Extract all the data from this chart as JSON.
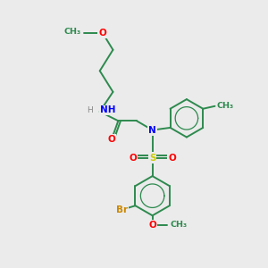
{
  "bg_color": "#ebebeb",
  "bond_color": "#2d8a4e",
  "N_color": "#0000ff",
  "O_color": "#ff0000",
  "S_color": "#cccc00",
  "Br_color": "#cc8800",
  "H_color": "#888888",
  "bond_width": 1.4,
  "figsize": [
    3.0,
    3.0
  ],
  "dpi": 100,
  "xlim": [
    0,
    10
  ],
  "ylim": [
    0,
    10
  ]
}
